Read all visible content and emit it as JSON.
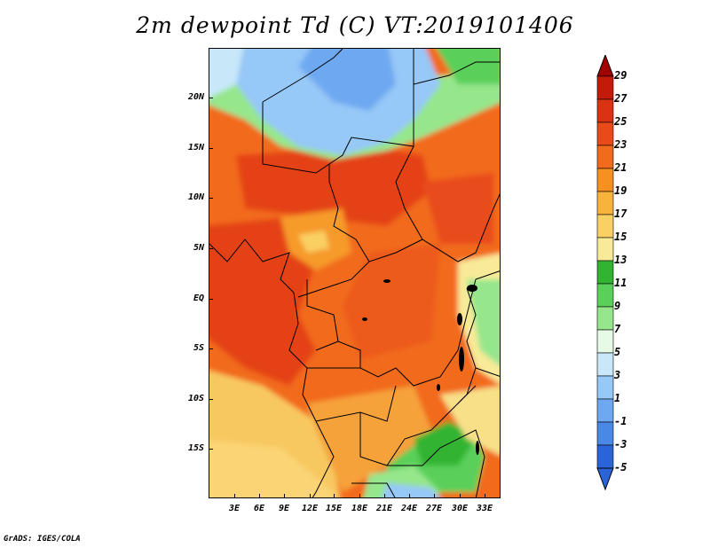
{
  "title": "2m dewpoint Td (C) VT:2019101406",
  "footer": "GrADS: IGES/COLA",
  "lat_labels": [
    "20N",
    "15N",
    "10N",
    "5N",
    "EQ",
    "5S",
    "10S",
    "15S"
  ],
  "lon_labels": [
    "3E",
    "6E",
    "9E",
    "12E",
    "15E",
    "18E",
    "21E",
    "24E",
    "27E",
    "30E",
    "33E"
  ],
  "colorbar": {
    "labels": [
      "29",
      "27",
      "25",
      "23",
      "21",
      "19",
      "17",
      "15",
      "13",
      "11",
      "9",
      "7",
      "5",
      "3",
      "1",
      "-1",
      "-3",
      "-5"
    ],
    "colors": [
      "#a00000",
      "#c41a0a",
      "#dc3214",
      "#ea4a1a",
      "#f26a1c",
      "#f6901e",
      "#f8b43a",
      "#fad064",
      "#f8ea98",
      "#32b432",
      "#5ad05a",
      "#96e68c",
      "#e6fae6",
      "#c8e8fa",
      "#96c8f8",
      "#6ea8f0",
      "#4a88e6",
      "#2a64d8"
    ]
  },
  "map": {
    "region": "Central Africa",
    "lon_range": [
      0,
      35
    ],
    "lat_range": [
      -20,
      24
    ],
    "variable": "2m dewpoint",
    "units": "C"
  }
}
